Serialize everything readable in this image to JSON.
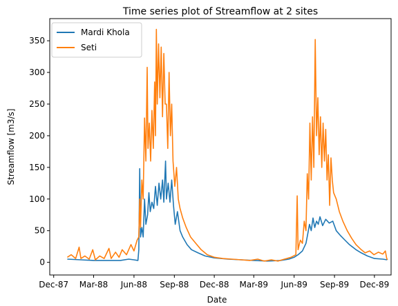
{
  "chart_data": {
    "type": "line",
    "title": "Time series plot of Streamflow at 2 sites",
    "xlabel": "Date",
    "ylabel": "Streamflow [m3/s]",
    "xlim": [
      "1987-11-22",
      "1990-01-08"
    ],
    "ylim": [
      -20,
      385
    ],
    "x_ticks": [
      {
        "date": "1987-12-01",
        "label": "Dec-87"
      },
      {
        "date": "1988-03-01",
        "label": "Mar-88"
      },
      {
        "date": "1988-06-01",
        "label": "Jun-88"
      },
      {
        "date": "1988-09-01",
        "label": "Sep-88"
      },
      {
        "date": "1988-12-01",
        "label": "Dec-88"
      },
      {
        "date": "1989-03-01",
        "label": "Mar-89"
      },
      {
        "date": "1989-06-01",
        "label": "Jun-89"
      },
      {
        "date": "1989-09-01",
        "label": "Sep-89"
      },
      {
        "date": "1989-12-01",
        "label": "Dec-89"
      }
    ],
    "y_ticks": [
      0,
      50,
      100,
      150,
      200,
      250,
      300,
      350
    ],
    "grid": false,
    "legend": "top-left",
    "series": [
      {
        "name": "Mardi Khola",
        "color": "#1f77b4",
        "points": [
          [
            "1988-01-01",
            5
          ],
          [
            "1988-02-01",
            4
          ],
          [
            "1988-03-01",
            3
          ],
          [
            "1988-04-01",
            3
          ],
          [
            "1988-05-01",
            3
          ],
          [
            "1988-05-20",
            5
          ],
          [
            "1988-06-01",
            4
          ],
          [
            "1988-06-10",
            3
          ],
          [
            "1988-06-12",
            20
          ],
          [
            "1988-06-14",
            148
          ],
          [
            "1988-06-16",
            40
          ],
          [
            "1988-06-19",
            55
          ],
          [
            "1988-06-22",
            40
          ],
          [
            "1988-06-25",
            100
          ],
          [
            "1988-06-28",
            60
          ],
          [
            "1988-07-02",
            75
          ],
          [
            "1988-07-05",
            110
          ],
          [
            "1988-07-08",
            80
          ],
          [
            "1988-07-12",
            95
          ],
          [
            "1988-07-16",
            85
          ],
          [
            "1988-07-20",
            120
          ],
          [
            "1988-07-24",
            90
          ],
          [
            "1988-07-28",
            125
          ],
          [
            "1988-08-01",
            100
          ],
          [
            "1988-08-05",
            130
          ],
          [
            "1988-08-08",
            95
          ],
          [
            "1988-08-12",
            160
          ],
          [
            "1988-08-14",
            100
          ],
          [
            "1988-08-18",
            125
          ],
          [
            "1988-08-22",
            95
          ],
          [
            "1988-08-26",
            130
          ],
          [
            "1988-08-30",
            90
          ],
          [
            "1988-09-03",
            60
          ],
          [
            "1988-09-08",
            80
          ],
          [
            "1988-09-14",
            50
          ],
          [
            "1988-09-20",
            40
          ],
          [
            "1988-09-30",
            28
          ],
          [
            "1988-10-10",
            20
          ],
          [
            "1988-10-25",
            15
          ],
          [
            "1988-11-10",
            10
          ],
          [
            "1988-12-01",
            7
          ],
          [
            "1989-01-01",
            5
          ],
          [
            "1989-02-01",
            4
          ],
          [
            "1989-03-01",
            3
          ],
          [
            "1989-04-01",
            2
          ],
          [
            "1989-05-01",
            3
          ],
          [
            "1989-05-20",
            5
          ],
          [
            "1989-06-01",
            8
          ],
          [
            "1989-06-10",
            12
          ],
          [
            "1989-06-20",
            18
          ],
          [
            "1989-06-28",
            30
          ],
          [
            "1989-07-02",
            45
          ],
          [
            "1989-07-06",
            60
          ],
          [
            "1989-07-10",
            50
          ],
          [
            "1989-07-14",
            70
          ],
          [
            "1989-07-18",
            55
          ],
          [
            "1989-07-22",
            65
          ],
          [
            "1989-07-26",
            60
          ],
          [
            "1989-07-30",
            72
          ],
          [
            "1989-08-05",
            58
          ],
          [
            "1989-08-12",
            68
          ],
          [
            "1989-08-20",
            62
          ],
          [
            "1989-08-28",
            65
          ],
          [
            "1989-09-05",
            50
          ],
          [
            "1989-09-15",
            42
          ],
          [
            "1989-09-25",
            35
          ],
          [
            "1989-10-05",
            28
          ],
          [
            "1989-10-20",
            20
          ],
          [
            "1989-11-01",
            15
          ],
          [
            "1989-11-15",
            10
          ],
          [
            "1989-12-01",
            6
          ],
          [
            "1989-12-20",
            5
          ],
          [
            "1989-12-30",
            4
          ]
        ]
      },
      {
        "name": "Seti",
        "color": "#ff7f0e",
        "points": [
          [
            "1988-01-01",
            8
          ],
          [
            "1988-01-10",
            12
          ],
          [
            "1988-01-20",
            6
          ],
          [
            "1988-01-28",
            24
          ],
          [
            "1988-02-01",
            6
          ],
          [
            "1988-02-10",
            10
          ],
          [
            "1988-02-20",
            5
          ],
          [
            "1988-02-28",
            20
          ],
          [
            "1988-03-05",
            4
          ],
          [
            "1988-03-15",
            10
          ],
          [
            "1988-03-25",
            6
          ],
          [
            "1988-04-05",
            22
          ],
          [
            "1988-04-10",
            6
          ],
          [
            "1988-04-20",
            16
          ],
          [
            "1988-04-28",
            8
          ],
          [
            "1988-05-05",
            20
          ],
          [
            "1988-05-15",
            12
          ],
          [
            "1988-05-25",
            28
          ],
          [
            "1988-06-01",
            18
          ],
          [
            "1988-06-08",
            35
          ],
          [
            "1988-06-12",
            40
          ],
          [
            "1988-06-14",
            100
          ],
          [
            "1988-06-16",
            55
          ],
          [
            "1988-06-19",
            130
          ],
          [
            "1988-06-22",
            100
          ],
          [
            "1988-06-25",
            228
          ],
          [
            "1988-06-28",
            160
          ],
          [
            "1988-07-01",
            308
          ],
          [
            "1988-07-03",
            180
          ],
          [
            "1988-07-06",
            220
          ],
          [
            "1988-07-09",
            160
          ],
          [
            "1988-07-12",
            240
          ],
          [
            "1988-07-15",
            180
          ],
          [
            "1988-07-18",
            285
          ],
          [
            "1988-07-20",
            200
          ],
          [
            "1988-07-22",
            368
          ],
          [
            "1988-07-24",
            250
          ],
          [
            "1988-07-27",
            345
          ],
          [
            "1988-07-30",
            260
          ],
          [
            "1988-08-02",
            340
          ],
          [
            "1988-08-05",
            230
          ],
          [
            "1988-08-08",
            330
          ],
          [
            "1988-08-11",
            250
          ],
          [
            "1988-08-14",
            250
          ],
          [
            "1988-08-17",
            180
          ],
          [
            "1988-08-20",
            300
          ],
          [
            "1988-08-23",
            200
          ],
          [
            "1988-08-26",
            250
          ],
          [
            "1988-08-29",
            160
          ],
          [
            "1988-09-02",
            120
          ],
          [
            "1988-09-06",
            150
          ],
          [
            "1988-09-10",
            100
          ],
          [
            "1988-09-14",
            85
          ],
          [
            "1988-09-20",
            70
          ],
          [
            "1988-09-28",
            55
          ],
          [
            "1988-10-08",
            40
          ],
          [
            "1988-10-20",
            30
          ],
          [
            "1988-11-01",
            20
          ],
          [
            "1988-11-15",
            12
          ],
          [
            "1988-12-01",
            8
          ],
          [
            "1988-12-20",
            6
          ],
          [
            "1989-01-10",
            5
          ],
          [
            "1989-02-01",
            4
          ],
          [
            "1989-02-20",
            3
          ],
          [
            "1989-03-10",
            5
          ],
          [
            "1989-03-25",
            2
          ],
          [
            "1989-04-10",
            4
          ],
          [
            "1989-04-25",
            2
          ],
          [
            "1989-05-10",
            5
          ],
          [
            "1989-05-25",
            8
          ],
          [
            "1989-06-05",
            12
          ],
          [
            "1989-06-08",
            105
          ],
          [
            "1989-06-10",
            20
          ],
          [
            "1989-06-15",
            35
          ],
          [
            "1989-06-20",
            30
          ],
          [
            "1989-06-24",
            65
          ],
          [
            "1989-06-28",
            50
          ],
          [
            "1989-07-01",
            140
          ],
          [
            "1989-07-04",
            100
          ],
          [
            "1989-07-07",
            220
          ],
          [
            "1989-07-10",
            130
          ],
          [
            "1989-07-13",
            230
          ],
          [
            "1989-07-16",
            150
          ],
          [
            "1989-07-19",
            352
          ],
          [
            "1989-07-22",
            200
          ],
          [
            "1989-07-25",
            260
          ],
          [
            "1989-07-28",
            170
          ],
          [
            "1989-07-31",
            230
          ],
          [
            "1989-08-03",
            150
          ],
          [
            "1989-08-06",
            220
          ],
          [
            "1989-08-09",
            160
          ],
          [
            "1989-08-12",
            210
          ],
          [
            "1989-08-15",
            130
          ],
          [
            "1989-08-18",
            170
          ],
          [
            "1989-08-21",
            90
          ],
          [
            "1989-08-24",
            165
          ],
          [
            "1989-08-27",
            130
          ],
          [
            "1989-08-30",
            110
          ],
          [
            "1989-09-05",
            100
          ],
          [
            "1989-09-12",
            80
          ],
          [
            "1989-09-20",
            65
          ],
          [
            "1989-09-30",
            50
          ],
          [
            "1989-10-10",
            38
          ],
          [
            "1989-10-20",
            28
          ],
          [
            "1989-11-01",
            20
          ],
          [
            "1989-11-10",
            15
          ],
          [
            "1989-11-20",
            18
          ],
          [
            "1989-11-30",
            12
          ],
          [
            "1989-12-10",
            16
          ],
          [
            "1989-12-20",
            13
          ],
          [
            "1989-12-26",
            18
          ],
          [
            "1989-12-29",
            6
          ],
          [
            "1989-12-31",
            4
          ]
        ]
      }
    ]
  }
}
